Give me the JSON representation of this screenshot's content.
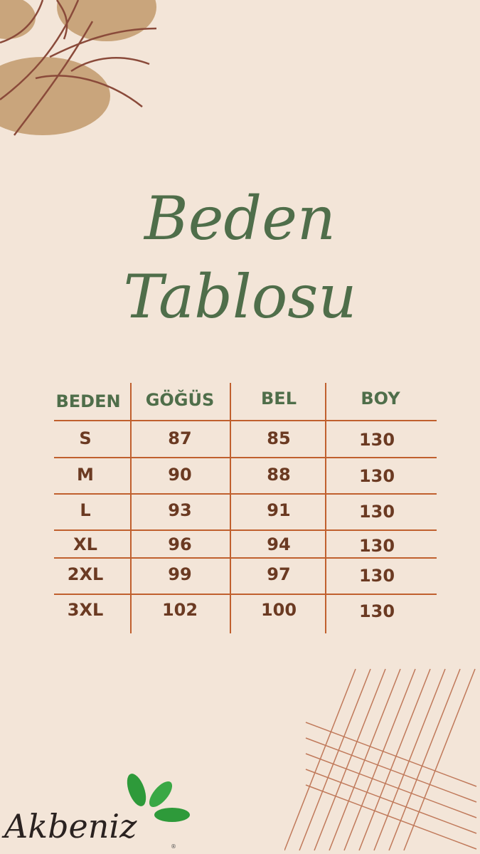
{
  "title": {
    "line1": "Beden",
    "line2": "Tablosu"
  },
  "table": {
    "headers": [
      "BEDEN",
      "GÖĞÜS",
      "BEL",
      "BOY"
    ],
    "rows": [
      [
        "S",
        "87",
        "85",
        "130"
      ],
      [
        "M",
        "90",
        "88",
        "130"
      ],
      [
        "L",
        "93",
        "91",
        "130"
      ],
      [
        "XL",
        "96",
        "94",
        "130"
      ],
      [
        "2XL",
        "99",
        "97",
        "130"
      ],
      [
        "3XL",
        "102",
        "100",
        "130"
      ]
    ]
  },
  "brand": {
    "name": "Akbeniz",
    "registered": "®"
  },
  "colors": {
    "background": "#f3e5d8",
    "heading_green": "#4f6e4a",
    "value_brown": "#6b3a22",
    "grid_line": "#c0602e",
    "leaf_green": "#2e9a3a"
  }
}
